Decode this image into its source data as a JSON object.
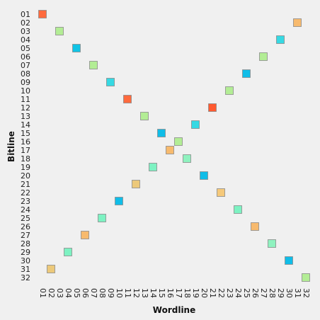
{
  "chart_data": {
    "type": "heatmap",
    "xlabel": "Wordline",
    "ylabel": "Bitline",
    "x_ticks": [
      "01",
      "02",
      "03",
      "04",
      "05",
      "06",
      "07",
      "08",
      "09",
      "10",
      "11",
      "12",
      "13",
      "14",
      "15",
      "16",
      "17",
      "18",
      "19",
      "20",
      "21",
      "22",
      "23",
      "24",
      "25",
      "26",
      "27",
      "28",
      "29",
      "30",
      "31",
      "32"
    ],
    "y_ticks": [
      "01",
      "02",
      "03",
      "04",
      "05",
      "06",
      "07",
      "08",
      "09",
      "10",
      "11",
      "12",
      "13",
      "14",
      "15",
      "16",
      "17",
      "18",
      "19",
      "20",
      "21",
      "22",
      "23",
      "24",
      "25",
      "26",
      "27",
      "28",
      "29",
      "30",
      "31",
      "32"
    ],
    "grid": false,
    "points": [
      {
        "wordline": "01",
        "bitline": "01",
        "color": "#ff6a3d"
      },
      {
        "wordline": "31",
        "bitline": "02",
        "color": "#f7ba6e"
      },
      {
        "wordline": "03",
        "bitline": "03",
        "color": "#b3ed95"
      },
      {
        "wordline": "29",
        "bitline": "04",
        "color": "#36d9e3"
      },
      {
        "wordline": "05",
        "bitline": "05",
        "color": "#10c4e6"
      },
      {
        "wordline": "27",
        "bitline": "06",
        "color": "#b3ed95"
      },
      {
        "wordline": "07",
        "bitline": "07",
        "color": "#b3ed95"
      },
      {
        "wordline": "25",
        "bitline": "08",
        "color": "#10bde8"
      },
      {
        "wordline": "09",
        "bitline": "09",
        "color": "#36d9e3"
      },
      {
        "wordline": "23",
        "bitline": "10",
        "color": "#b3ed95"
      },
      {
        "wordline": "11",
        "bitline": "11",
        "color": "#ff6a3d"
      },
      {
        "wordline": "21",
        "bitline": "12",
        "color": "#ff5a30"
      },
      {
        "wordline": "13",
        "bitline": "13",
        "color": "#b3ed95"
      },
      {
        "wordline": "19",
        "bitline": "14",
        "color": "#36d9e3"
      },
      {
        "wordline": "15",
        "bitline": "15",
        "color": "#10bde8"
      },
      {
        "wordline": "17",
        "bitline": "16",
        "color": "#b3ed95"
      },
      {
        "wordline": "16",
        "bitline": "17",
        "color": "#f7ba6e"
      },
      {
        "wordline": "18",
        "bitline": "18",
        "color": "#8ff2bf"
      },
      {
        "wordline": "14",
        "bitline": "19",
        "color": "#7df2c2"
      },
      {
        "wordline": "20",
        "bitline": "20",
        "color": "#10bde8"
      },
      {
        "wordline": "12",
        "bitline": "21",
        "color": "#ecc97a"
      },
      {
        "wordline": "22",
        "bitline": "22",
        "color": "#f5c97a"
      },
      {
        "wordline": "10",
        "bitline": "23",
        "color": "#10bde8"
      },
      {
        "wordline": "24",
        "bitline": "24",
        "color": "#7df2c2"
      },
      {
        "wordline": "08",
        "bitline": "25",
        "color": "#7df2c2"
      },
      {
        "wordline": "26",
        "bitline": "26",
        "color": "#f7ba6e"
      },
      {
        "wordline": "06",
        "bitline": "27",
        "color": "#f7ba6e"
      },
      {
        "wordline": "28",
        "bitline": "28",
        "color": "#8ff2bf"
      },
      {
        "wordline": "04",
        "bitline": "29",
        "color": "#7df2c2"
      },
      {
        "wordline": "30",
        "bitline": "30",
        "color": "#10bde8"
      },
      {
        "wordline": "02",
        "bitline": "31",
        "color": "#ecc97a"
      },
      {
        "wordline": "32",
        "bitline": "32",
        "color": "#b3ed95"
      }
    ]
  }
}
